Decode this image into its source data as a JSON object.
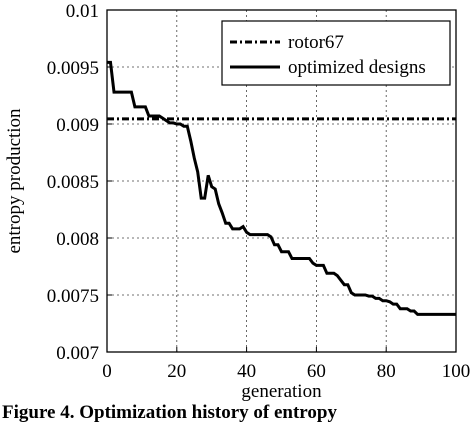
{
  "caption": "Figure 4. Optimization history of entropy",
  "chart_data": {
    "type": "line",
    "xlabel": "generation",
    "ylabel": "entropy production",
    "xlim": [
      0,
      100
    ],
    "ylim": [
      0.007,
      0.01
    ],
    "xticks": [
      0,
      20,
      40,
      60,
      80,
      100
    ],
    "xtick_labels": [
      "0",
      "20",
      "40",
      "60",
      "80",
      "100"
    ],
    "yticks": [
      0.007,
      0.0075,
      0.008,
      0.0085,
      0.009,
      0.0095,
      0.01
    ],
    "ytick_labels": [
      "0.007",
      "0.0075",
      "0.008",
      "0.0085",
      "0.009",
      "0.0095",
      "0.01"
    ],
    "grid": true,
    "legend_position": "top-right",
    "series": [
      {
        "name": "rotor67",
        "style": "dashdot",
        "color": "#000000",
        "x": [
          0,
          100
        ],
        "y": [
          0.009045,
          0.009045
        ]
      },
      {
        "name": "optimized designs",
        "style": "solid",
        "color": "#000000",
        "x": [
          0,
          1,
          2,
          3,
          4,
          5,
          6,
          7,
          8,
          9,
          10,
          11,
          12,
          13,
          14,
          15,
          16,
          17,
          18,
          19,
          20,
          21,
          22,
          23,
          24,
          25,
          26,
          27,
          28,
          29,
          30,
          31,
          32,
          33,
          34,
          35,
          36,
          37,
          38,
          39,
          40,
          41,
          42,
          43,
          44,
          45,
          46,
          47,
          48,
          49,
          50,
          51,
          52,
          53,
          54,
          55,
          56,
          57,
          58,
          59,
          60,
          61,
          62,
          63,
          64,
          65,
          66,
          67,
          68,
          69,
          70,
          71,
          72,
          73,
          74,
          75,
          76,
          77,
          78,
          79,
          80,
          81,
          82,
          83,
          84,
          85,
          86,
          87,
          88,
          89,
          90,
          91,
          92,
          93,
          94,
          95,
          96,
          97,
          98,
          99,
          100
        ],
        "y": [
          0.00954,
          0.00954,
          0.00928,
          0.00928,
          0.00928,
          0.00928,
          0.00928,
          0.00928,
          0.00915,
          0.00915,
          0.00915,
          0.00915,
          0.00907,
          0.00907,
          0.00907,
          0.00907,
          0.00905,
          0.00903,
          0.00901,
          0.00901,
          0.009,
          0.009,
          0.00898,
          0.00898,
          0.00885,
          0.0087,
          0.00858,
          0.00835,
          0.00835,
          0.00855,
          0.00845,
          0.00843,
          0.0083,
          0.00822,
          0.00813,
          0.00813,
          0.00808,
          0.00808,
          0.00808,
          0.0081,
          0.00805,
          0.00803,
          0.00803,
          0.00803,
          0.00803,
          0.00803,
          0.00803,
          0.00801,
          0.00794,
          0.00794,
          0.00788,
          0.00788,
          0.00788,
          0.00782,
          0.00782,
          0.00782,
          0.00782,
          0.00782,
          0.00782,
          0.00778,
          0.00776,
          0.00776,
          0.00776,
          0.00769,
          0.00769,
          0.00769,
          0.00767,
          0.00763,
          0.00759,
          0.00759,
          0.00752,
          0.0075,
          0.0075,
          0.0075,
          0.0075,
          0.00749,
          0.00749,
          0.00747,
          0.00747,
          0.00745,
          0.00745,
          0.00744,
          0.00742,
          0.00742,
          0.00738,
          0.00738,
          0.00738,
          0.00736,
          0.00736,
          0.00733,
          0.00733,
          0.00733,
          0.00733,
          0.00733,
          0.00733,
          0.00733,
          0.00733,
          0.00733,
          0.00733,
          0.00733,
          0.00733
        ]
      }
    ]
  }
}
